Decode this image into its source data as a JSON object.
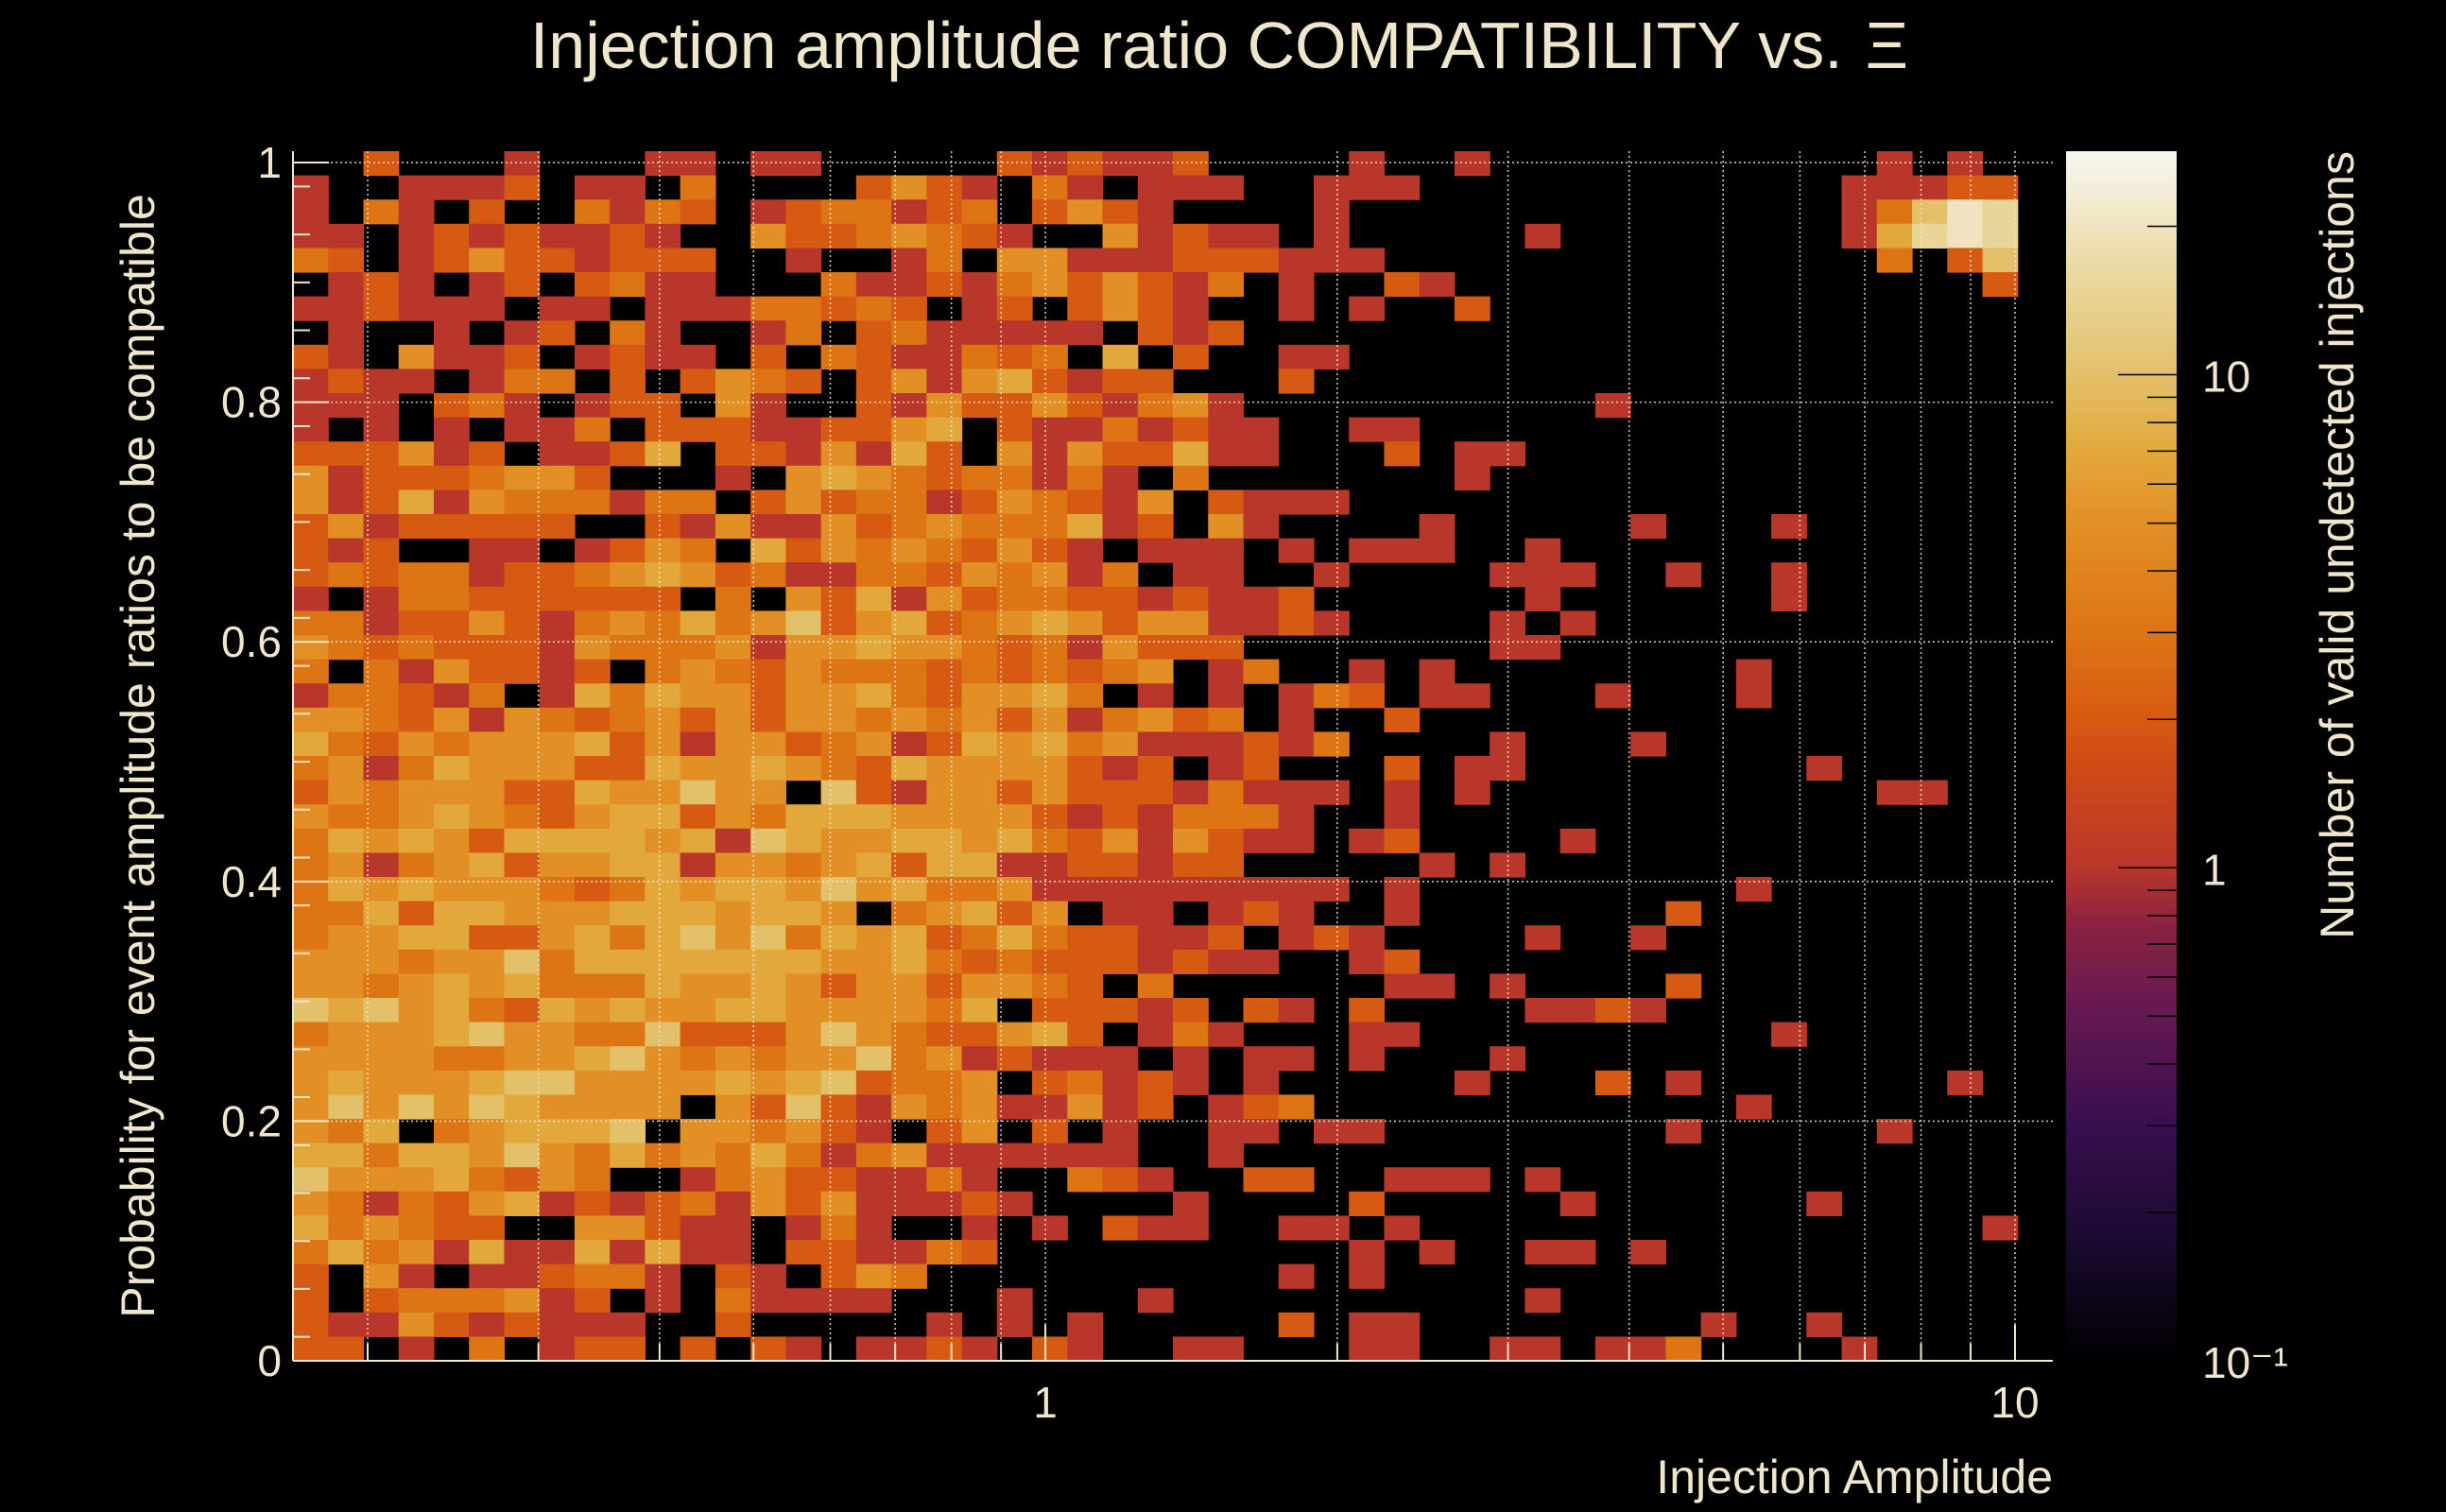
{
  "chart_data": {
    "type": "heatmap",
    "title": "Injection amplitude ratio COMPATIBILITY vs.",
    "title_symbol": "Ξ",
    "xlabel": "Injection Amplitude",
    "ylabel": "Probability for event amplitude ratios to be compatible",
    "colorbar_label": "Number of valid undetected injections",
    "x_scale": "log",
    "xlim": [
      0.1675,
      10.94
    ],
    "ylim": [
      0,
      1.0095
    ],
    "z_scale": "log",
    "zlim": [
      0.1,
      28.4
    ],
    "x_bins": 50,
    "y_bins": 50,
    "x_ticks": [
      {
        "value": 1,
        "label": "1"
      },
      {
        "value": 10,
        "label": "10"
      }
    ],
    "x_grid": [
      0.2,
      0.3,
      0.4,
      0.5,
      0.6,
      0.7,
      0.8,
      0.9,
      1,
      2,
      3,
      4,
      5,
      6,
      7,
      8,
      9,
      10
    ],
    "y_ticks": [
      {
        "value": 0,
        "label": "0"
      },
      {
        "value": 0.2,
        "label": "0.2"
      },
      {
        "value": 0.4,
        "label": "0.4"
      },
      {
        "value": 0.6,
        "label": "0.6"
      },
      {
        "value": 0.8,
        "label": "0.8"
      },
      {
        "value": 1,
        "label": "1"
      }
    ],
    "z_ticks": [
      {
        "value": 0.1,
        "label": "10⁻¹"
      },
      {
        "value": 1,
        "label": "1"
      },
      {
        "value": 10,
        "label": "10"
      }
    ],
    "grid": true,
    "colormap": "inferno",
    "level_counts": [
      0,
      1,
      2,
      3,
      5,
      7,
      10,
      15,
      20
    ],
    "rows_top_to_bottom": [
      "00200010001101100000212112000010010000000000010100",
      "10011120110300002421031011100111000000000000111220",
      "10310200313201233123024210000100000000000000136870",
      "11012121121004223432100412110100000100000000157870",
      "32012422122200100130441112221110000000000000030260",
      "01210120231100031121342421301002100000000000000020",
      "11211101101113323201202421001010020000000000000000",
      "01001012031001302311111021200000000000000000000000",
      "21041120121102032113230502001100000000000000000000",
      "12110133020243202414521220002000000000000000000000",
      "11102310122041002142242134100000000001000000000000",
      "10101011302221122450211312110011000000000000000000",
      "22241201125022141520414225110002011000000000000000",
      "41222344200010454323313103000000010000000000000000",
      "41251433313302423312432140211100000000000000000000",
      "24122222002141142343335120410000100000100010000000",
      "21200110124305243432421011101011100100000000000000",
      "23233122345423113324341301100100001110010010000000",
      "10133222222030425142332212112000000100000010000000",
      "33122421343534624523454244112100001010000000000000",
      "43232221433341445443231422200000001100000000000000",
      "30314221203432433323232340130010100000000100000000",
      "13321301535442445324453010101320110001000100000000",
      "44324143234242443434241342301002000000000000000000",
      "53243444524144234125453411121300001000100000000000",
      "34135444225445432544442120120002011000000001000000",
      "24344422544644062144242221311101010000000000011000",
      "43345432455243555444421213331001000000000000000000",
      "35454255554516544554532414211012000010000000000000",
      "34134524455144345255112212200000101000000000000000",
      "35454443235455464533411111111101000000000100000000",
      "33525544455545540345240110121001000000020000000000",
      "34455224535646354523532211201210000100100000000000",
      "44434463555555544532322212110012000000000000000000",
      "44345453335445424424432030000001101000020000000000",
      "65645325454455444435022212021020000112100000000000",
      "34445644336222464322452013100011000000000010000000",
      "44443344564343446341211101011010001000000000000000",
      "45444566444454562334023121010000010002010000000100",
      "46464654444042621434114120123000000000000100000000",
      "43503455560443421024020100110110000000010000010000",
      "55355464353435313411111100100000000000000000000000",
      "64445324300134221131003210022001110100000000000000",
      "43132451212314241112100001000020000010000001000000",
      "53432200442110131001010211001101000000000000000010",
      "35341511515110221132000000000010100110100000000000",
      "20410112331021024300000000001010000000000000000000",
      "20233341201031111000100010000000000100000000000000",
      "21142121110020000010101000002011000000001001000000",
      "22010301220202101121021001100011001101130000100000"
    ]
  }
}
